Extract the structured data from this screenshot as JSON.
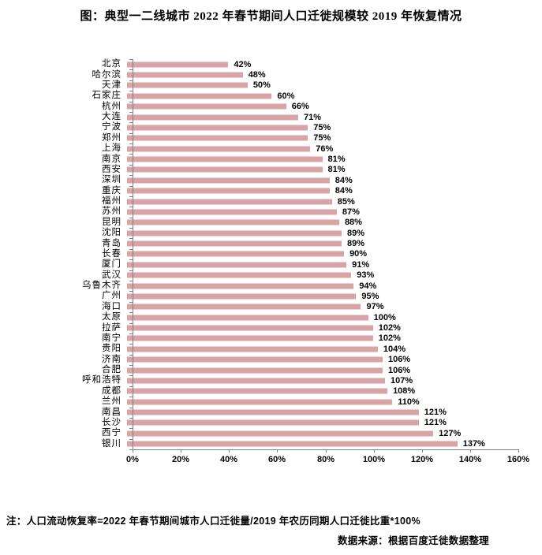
{
  "title": "图：典型一二线城市 2022 年春节期间人口迁徙规模较 2019 年恢复情况",
  "note": "注：人口流动恢复率=2022 年春节期间城市人口迁徙量/2019 年农历同期人口迁徙比重*100%",
  "source": "数据来源：根据百度迁徙数据整理",
  "colors": {
    "bar": "#D9A4A7",
    "axis": "#808080",
    "text": "#000000"
  },
  "chart_data": {
    "type": "bar",
    "orientation": "horizontal",
    "title": "图：典型一二线城市 2022 年春节期间人口迁徙规模较 2019 年恢复情况",
    "categories": [
      "北京",
      "哈尔滨",
      "天津",
      "石家庄",
      "杭州",
      "大连",
      "宁波",
      "郑州",
      "上海",
      "南京",
      "西安",
      "深圳",
      "重庆",
      "福州",
      "苏州",
      "昆明",
      "沈阳",
      "青岛",
      "长春",
      "厦门",
      "武汉",
      "乌鲁木齐",
      "广州",
      "海口",
      "太原",
      "拉萨",
      "南宁",
      "贵阳",
      "济南",
      "合肥",
      "呼和浩特",
      "成都",
      "兰州",
      "南昌",
      "长沙",
      "西宁",
      "银川"
    ],
    "values": [
      42,
      48,
      50,
      60,
      66,
      71,
      75,
      75,
      76,
      81,
      81,
      84,
      84,
      85,
      87,
      88,
      89,
      89,
      90,
      91,
      93,
      94,
      95,
      97,
      100,
      102,
      102,
      104,
      106,
      106,
      107,
      108,
      110,
      121,
      121,
      127,
      137
    ],
    "value_suffix": "%",
    "xlim": [
      0,
      160
    ],
    "x_tick_step": 20,
    "x_ticks": [
      "0%",
      "20%",
      "40%",
      "60%",
      "80%",
      "100%",
      "120%",
      "140%",
      "160%"
    ],
    "grid": false,
    "legend": false
  }
}
